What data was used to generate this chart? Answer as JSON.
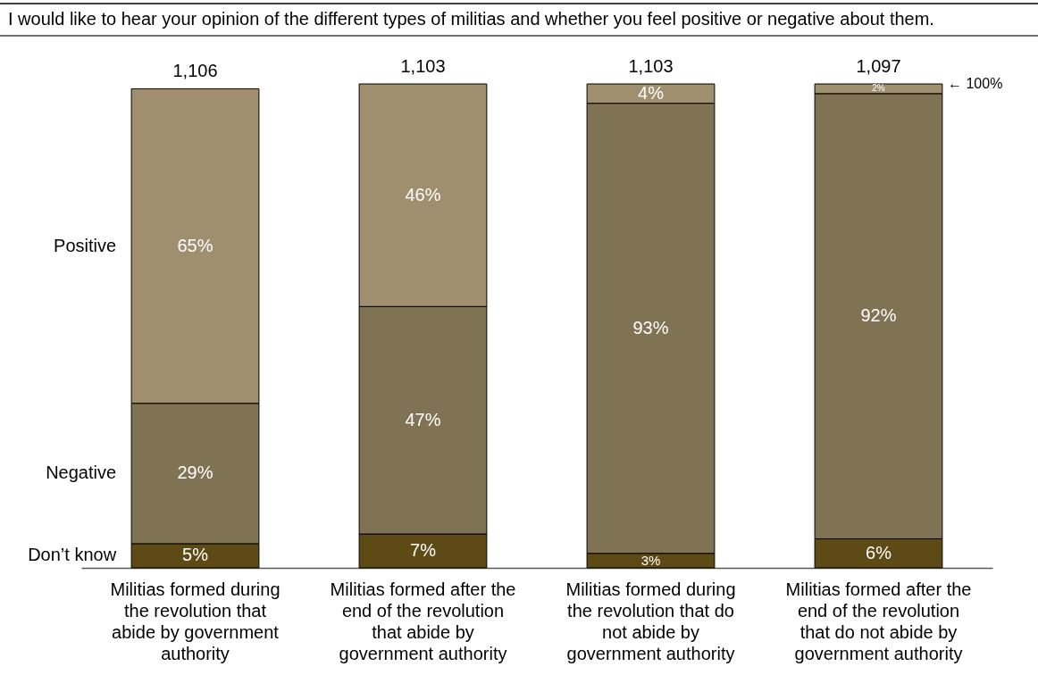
{
  "chart_data": {
    "type": "bar",
    "title": "I would like to hear your opinion of the different types of militias and whether you feel positive or negative about them.",
    "categories": [
      "Militias formed during the revolution that abide  by government authority",
      "Militias formed after the end of the revolution that abide by government authority",
      "Militias formed during the revolution that do not abide by government authority",
      "Militias formed after the end of the revolution that do not abide by government authority"
    ],
    "stacked": true,
    "ylim": [
      0,
      100
    ],
    "tick_labels": "x",
    "legend": false,
    "series": [
      {
        "name": "Don’t know",
        "color": "#5d4a14",
        "values": [
          5,
          7,
          3,
          6
        ],
        "value_labels": [
          "5%",
          "7%",
          "3%",
          "6%"
        ]
      },
      {
        "name": "Negative",
        "color": "#7f7353",
        "values": [
          29,
          47,
          93,
          92
        ],
        "value_labels": [
          "29%",
          "47%",
          "93%",
          "92%"
        ]
      },
      {
        "name": "Positive",
        "color": "#a08f6e",
        "values": [
          65,
          46,
          4,
          2
        ],
        "value_labels": [
          "65%",
          "46%",
          "4%",
          "2%"
        ]
      }
    ],
    "annotations": [
      {
        "text": "1,106",
        "x": "Militias formed during the revolution that abide  by government authority",
        "y": 99
      },
      {
        "text": "1,103",
        "x": "Militias formed after the end of the revolution that abide by government authority",
        "y": 100
      },
      {
        "text": "1,103",
        "x": "Militias formed during the revolution that do not abide by government authority",
        "y": 100
      },
      {
        "text": "1,097",
        "x": "Militias formed after the end of the revolution that do not abide by government authority",
        "y": 100
      },
      "← 100%"
    ]
  }
}
